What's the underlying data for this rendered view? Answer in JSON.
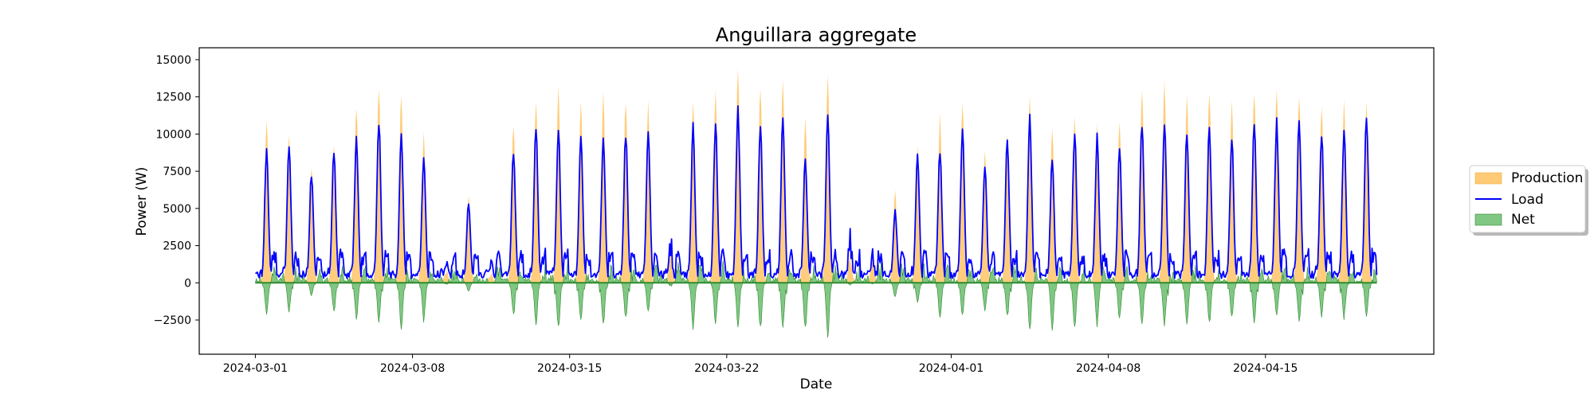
{
  "chart_data": {
    "type": "area",
    "title": "Anguillara aggregate",
    "xlabel": "Date",
    "ylabel": "Power (W)",
    "x_range": [
      "2024-02-27T12:00",
      "2024-04-22T12:00"
    ],
    "x_data_range": [
      "2024-03-01T00:00",
      "2024-04-19T23:00"
    ],
    "ylim": [
      -4800,
      15800
    ],
    "x_tick_labels": [
      "2024-03-01",
      "2024-03-08",
      "2024-03-15",
      "2024-03-22",
      "2024-04-01",
      "2024-04-08",
      "2024-04-15"
    ],
    "y_ticks": [
      -2500,
      0,
      2500,
      5000,
      7500,
      10000,
      12500,
      15000
    ],
    "y_tick_labels": [
      "−2500",
      "0",
      "2500",
      "5000",
      "7500",
      "10000",
      "12500",
      "15000"
    ],
    "grid": false,
    "legend": {
      "placement": "outside-right",
      "entries": [
        {
          "label": "Production",
          "kind": "area",
          "color": "#ffc466"
        },
        {
          "label": "Load",
          "kind": "line",
          "color": "#0000ff"
        },
        {
          "label": "Net",
          "kind": "area",
          "color": "#4caf50"
        }
      ]
    },
    "series_colors": {
      "production_fill": "#ffc466",
      "load_line": "#0000ff",
      "net_fill": "#4caf50",
      "net_edge": "#2e8b2e"
    },
    "daily_peaks": [
      {
        "date": "2024-03-01",
        "production": 11100,
        "load": 9100,
        "net_min": -2300
      },
      {
        "date": "2024-03-02",
        "production": 10200,
        "load": 9300,
        "net_min": -2100
      },
      {
        "date": "2024-03-03",
        "production": 8000,
        "load": 7600,
        "net_min": -900
      },
      {
        "date": "2024-03-04",
        "production": 9600,
        "load": 9200,
        "net_min": -2100
      },
      {
        "date": "2024-03-05",
        "production": 12300,
        "load": 10000,
        "net_min": -2600
      },
      {
        "date": "2024-03-06",
        "production": 13400,
        "load": 11300,
        "net_min": -2800
      },
      {
        "date": "2024-03-07",
        "production": 13100,
        "load": 10200,
        "net_min": -3300
      },
      {
        "date": "2024-03-08",
        "production": 10200,
        "load": 8700,
        "net_min": -2700
      },
      {
        "date": "2024-03-09",
        "production": 1200,
        "load": 2200,
        "net_min": -200
      },
      {
        "date": "2024-03-10",
        "production": 6000,
        "load": 5600,
        "net_min": -600
      },
      {
        "date": "2024-03-11",
        "production": 1000,
        "load": 2500,
        "net_min": 0
      },
      {
        "date": "2024-03-12",
        "production": 11000,
        "load": 9200,
        "net_min": -2300
      },
      {
        "date": "2024-03-13",
        "production": 12600,
        "load": 10700,
        "net_min": -3100
      },
      {
        "date": "2024-03-14",
        "production": 13400,
        "load": 10600,
        "net_min": -3400
      },
      {
        "date": "2024-03-15",
        "production": 12500,
        "load": 10200,
        "net_min": -2900
      },
      {
        "date": "2024-03-16",
        "production": 12900,
        "load": 10000,
        "net_min": -3000
      },
      {
        "date": "2024-03-17",
        "production": 12700,
        "load": 10400,
        "net_min": -2600
      },
      {
        "date": "2024-03-18",
        "production": 12300,
        "load": 10400,
        "net_min": -2200
      },
      {
        "date": "2024-03-19",
        "production": 3000,
        "load": 3500,
        "net_min": -300
      },
      {
        "date": "2024-03-20",
        "production": 12600,
        "load": 10900,
        "net_min": -3200
      },
      {
        "date": "2024-03-21",
        "production": 13200,
        "load": 11100,
        "net_min": -2900
      },
      {
        "date": "2024-03-22",
        "production": 14800,
        "load": 12100,
        "net_min": -3100
      },
      {
        "date": "2024-03-23",
        "production": 13700,
        "load": 11100,
        "net_min": -3300
      },
      {
        "date": "2024-03-24",
        "production": 13900,
        "load": 11300,
        "net_min": -3200
      },
      {
        "date": "2024-03-25",
        "production": 11300,
        "load": 8500,
        "net_min": -3400
      },
      {
        "date": "2024-03-26",
        "production": 14000,
        "load": 11400,
        "net_min": -3900
      },
      {
        "date": "2024-03-27",
        "production": 2500,
        "load": 4000,
        "net_min": -200
      },
      {
        "date": "2024-03-28",
        "production": 2200,
        "load": 2500,
        "net_min": -100
      },
      {
        "date": "2024-03-29",
        "production": 6300,
        "load": 5000,
        "net_min": -1000
      },
      {
        "date": "2024-03-30",
        "production": 9500,
        "load": 8700,
        "net_min": -1400
      },
      {
        "date": "2024-03-31",
        "production": 11500,
        "load": 9300,
        "net_min": -2600
      },
      {
        "date": "2024-04-01",
        "production": 12600,
        "load": 10600,
        "net_min": -2400
      },
      {
        "date": "2024-04-02",
        "production": 9200,
        "load": 8200,
        "net_min": -2000
      },
      {
        "date": "2024-04-03",
        "production": 10500,
        "load": 9900,
        "net_min": -2400
      },
      {
        "date": "2024-04-04",
        "production": 12700,
        "load": 11500,
        "net_min": -3400
      },
      {
        "date": "2024-04-05",
        "production": 10500,
        "load": 8700,
        "net_min": -3300
      },
      {
        "date": "2024-04-06",
        "production": 11500,
        "load": 10500,
        "net_min": -3300
      },
      {
        "date": "2024-04-07",
        "production": 10800,
        "load": 10100,
        "net_min": -3100
      },
      {
        "date": "2024-04-08",
        "production": 11200,
        "load": 9200,
        "net_min": -2700
      },
      {
        "date": "2024-04-09",
        "production": 13500,
        "load": 11100,
        "net_min": -3100
      },
      {
        "date": "2024-04-10",
        "production": 14000,
        "load": 11000,
        "net_min": -3000
      },
      {
        "date": "2024-04-11",
        "production": 12700,
        "load": 10400,
        "net_min": -3200
      },
      {
        "date": "2024-04-12",
        "production": 13200,
        "load": 10800,
        "net_min": -3000
      },
      {
        "date": "2024-04-13",
        "production": 12300,
        "load": 10100,
        "net_min": -2500
      },
      {
        "date": "2024-04-14",
        "production": 13300,
        "load": 11000,
        "net_min": -2900
      },
      {
        "date": "2024-04-15",
        "production": 13200,
        "load": 11100,
        "net_min": -2500
      },
      {
        "date": "2024-04-16",
        "production": 13000,
        "load": 11300,
        "net_min": -2700
      },
      {
        "date": "2024-04-17",
        "production": 12300,
        "load": 10300,
        "net_min": -2400
      },
      {
        "date": "2024-04-18",
        "production": 12400,
        "load": 10600,
        "net_min": -2500
      },
      {
        "date": "2024-04-19",
        "production": 12500,
        "load": 11500,
        "net_min": -2400
      }
    ]
  }
}
